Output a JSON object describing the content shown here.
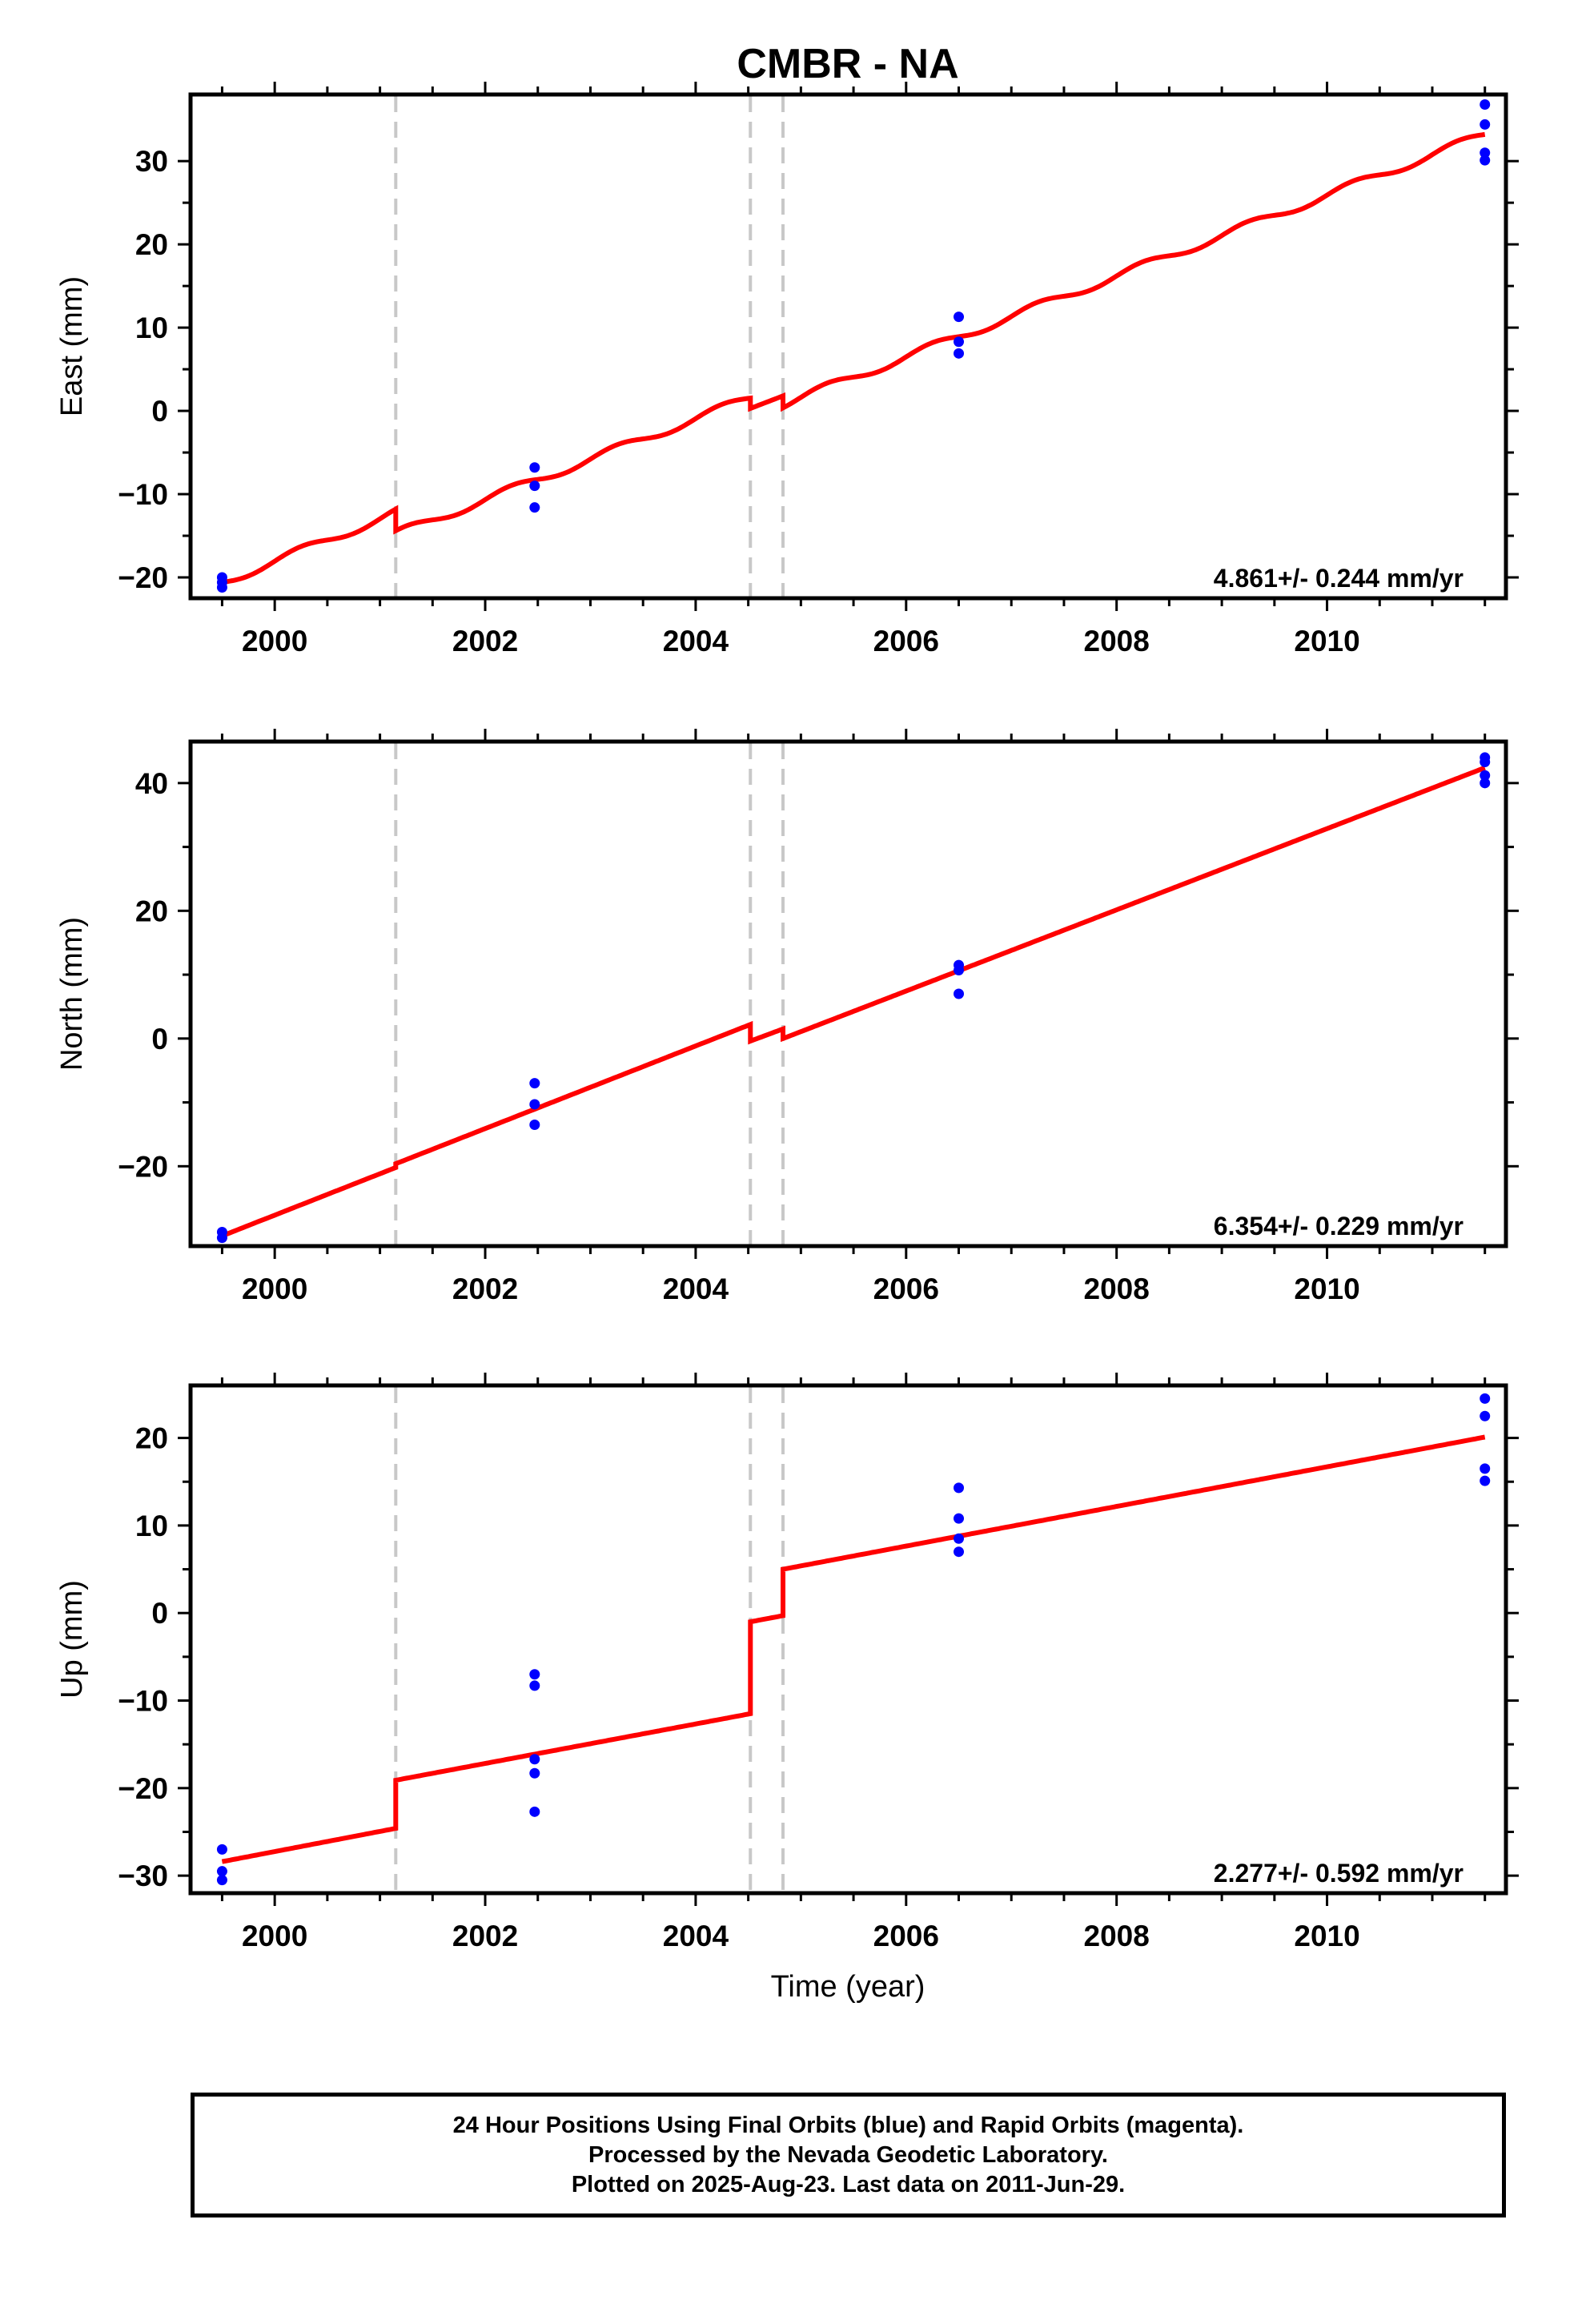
{
  "figure": {
    "title": "CMBR - NA",
    "xlabel": "Time (year)",
    "caption_lines": [
      "24 Hour Positions Using Final Orbits (blue) and Rapid Orbits (magenta).",
      "Processed by the Nevada Geodetic Laboratory.",
      "Plotted on 2025-Aug-23. Last data on 2011-Jun-29."
    ]
  },
  "colors": {
    "fit_line": "#ff0000",
    "points": "#0000ff",
    "event_lines": "#c8c8c8",
    "axes": "#000000"
  },
  "chart_data": [
    {
      "type": "scatter",
      "title": "",
      "ylabel": "East (mm)",
      "xlim": [
        1999.2,
        2011.7
      ],
      "ylim": [
        -22.5,
        38
      ],
      "xticks": [
        2000,
        2002,
        2004,
        2006,
        2008,
        2010
      ],
      "xtick_labels": [
        "2000",
        "2002",
        "2004",
        "2006",
        "2008",
        "2010"
      ],
      "yticks": [
        -20,
        -10,
        0,
        10,
        20,
        30
      ],
      "ytick_labels": [
        "−20",
        "−10",
        "0",
        "10",
        "20",
        "30"
      ],
      "annotation": "4.861+/- 0.244 mm/yr",
      "event_lines": [
        2001.15,
        2004.52,
        2004.83
      ],
      "points": [
        [
          1999.5,
          -20.0
        ],
        [
          1999.5,
          -20.6
        ],
        [
          1999.5,
          -21.2
        ],
        [
          2002.47,
          -6.8
        ],
        [
          2002.47,
          -9.0
        ],
        [
          2002.47,
          -11.6
        ],
        [
          2006.5,
          11.3
        ],
        [
          2006.5,
          8.3
        ],
        [
          2006.5,
          6.9
        ],
        [
          2011.5,
          36.8
        ],
        [
          2011.5,
          34.4
        ],
        [
          2011.5,
          31.0
        ],
        [
          2011.5,
          30.1
        ]
      ],
      "fit_segments": [
        {
          "start": 1999.5,
          "end": 2001.15,
          "y_start": -20.6,
          "y_end": -12.2,
          "seasonal_amp": 0.5
        },
        {
          "start": 2001.15,
          "end": 2004.52,
          "y_start": -14.8,
          "y_end": 1.6,
          "seasonal_amp": 0.5
        },
        {
          "start": 2004.52,
          "end": 2004.83,
          "y_start": 0.3,
          "y_end": 1.8,
          "seasonal_amp": 0.0
        },
        {
          "start": 2004.83,
          "end": 2011.5,
          "y_start": 0.8,
          "y_end": 33.2,
          "seasonal_amp": 0.5
        }
      ]
    },
    {
      "type": "scatter",
      "title": "",
      "ylabel": "North (mm)",
      "xlim": [
        1999.2,
        2011.7
      ],
      "ylim": [
        -32.5,
        46.5
      ],
      "xticks": [
        2000,
        2002,
        2004,
        2006,
        2008,
        2010
      ],
      "xtick_labels": [
        "2000",
        "2002",
        "2004",
        "2006",
        "2008",
        "2010"
      ],
      "yticks": [
        -20,
        0,
        20,
        40
      ],
      "ytick_labels": [
        "−20",
        "0",
        "20",
        "40"
      ],
      "annotation": "6.354+/- 0.229 mm/yr",
      "event_lines": [
        2001.15,
        2004.52,
        2004.83
      ],
      "points": [
        [
          1999.5,
          -30.3
        ],
        [
          1999.5,
          -31.2
        ],
        [
          2002.47,
          -7.0
        ],
        [
          2002.47,
          -10.3
        ],
        [
          2002.47,
          -13.5
        ],
        [
          2006.5,
          11.5
        ],
        [
          2006.5,
          10.7
        ],
        [
          2006.5,
          7.0
        ],
        [
          2011.5,
          44.0
        ],
        [
          2011.5,
          43.3
        ],
        [
          2011.5,
          41.2
        ],
        [
          2011.5,
          40.0
        ]
      ],
      "fit_segments": [
        {
          "start": 1999.5,
          "end": 2001.15,
          "y_start": -30.9,
          "y_end": -20.2,
          "seasonal_amp": 0.0
        },
        {
          "start": 2001.15,
          "end": 2004.52,
          "y_start": -19.6,
          "y_end": 2.2,
          "seasonal_amp": 0.0
        },
        {
          "start": 2004.52,
          "end": 2004.83,
          "y_start": -0.4,
          "y_end": 1.5,
          "seasonal_amp": 0.0
        },
        {
          "start": 2004.83,
          "end": 2011.5,
          "y_start": 0.0,
          "y_end": 42.4,
          "seasonal_amp": 0.0
        }
      ]
    },
    {
      "type": "scatter",
      "title": "",
      "ylabel": "Up (mm)",
      "xlim": [
        1999.2,
        2011.7
      ],
      "ylim": [
        -32,
        26
      ],
      "xticks": [
        2000,
        2002,
        2004,
        2006,
        2008,
        2010
      ],
      "xtick_labels": [
        "2000",
        "2002",
        "2004",
        "2006",
        "2008",
        "2010"
      ],
      "yticks": [
        -30,
        -20,
        -10,
        0,
        10,
        20
      ],
      "ytick_labels": [
        "−30",
        "−20",
        "−10",
        "0",
        "10",
        "20"
      ],
      "annotation": "2.277+/- 0.592 mm/yr",
      "event_lines": [
        2001.15,
        2004.52,
        2004.83
      ],
      "points": [
        [
          1999.5,
          -27.0
        ],
        [
          1999.5,
          -29.5
        ],
        [
          1999.5,
          -30.5
        ],
        [
          2002.47,
          -7.0
        ],
        [
          2002.47,
          -8.3
        ],
        [
          2002.47,
          -16.7
        ],
        [
          2002.47,
          -18.3
        ],
        [
          2002.47,
          -22.7
        ],
        [
          2006.5,
          14.3
        ],
        [
          2006.5,
          10.8
        ],
        [
          2006.5,
          8.5
        ],
        [
          2006.5,
          7.0
        ],
        [
          2011.5,
          24.5
        ],
        [
          2011.5,
          22.5
        ],
        [
          2011.5,
          16.5
        ],
        [
          2011.5,
          15.1
        ]
      ],
      "fit_segments": [
        {
          "start": 1999.5,
          "end": 2001.15,
          "y_start": -28.4,
          "y_end": -24.6,
          "seasonal_amp": 0.0
        },
        {
          "start": 2001.15,
          "end": 2004.52,
          "y_start": -19.1,
          "y_end": -11.5,
          "seasonal_amp": 0.0
        },
        {
          "start": 2004.52,
          "end": 2004.83,
          "y_start": -1.0,
          "y_end": -0.3,
          "seasonal_amp": 0.0
        },
        {
          "start": 2004.83,
          "end": 2011.5,
          "y_start": 5.0,
          "y_end": 20.1,
          "seasonal_amp": 0.0
        }
      ]
    }
  ]
}
